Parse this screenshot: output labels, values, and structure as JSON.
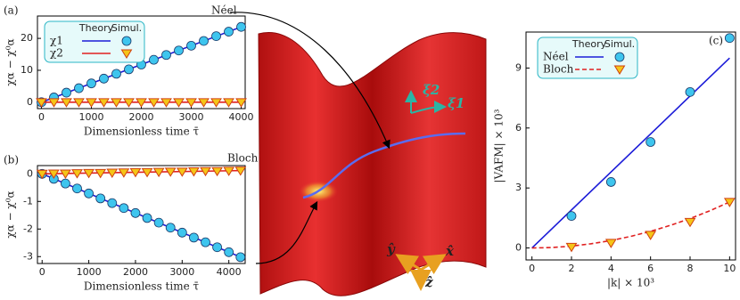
{
  "chart_data": [
    {
      "type": "line",
      "panel": "(a)",
      "annotation": "Néel",
      "x_label": "Dimensionless time τ̄",
      "y_label": "χα − χ⁰α",
      "legend_header": [
        "Theory",
        "Simul."
      ],
      "xlim": [
        -80,
        4080
      ],
      "ylim": [
        -2,
        27
      ],
      "xticks": [
        0,
        1000,
        2000,
        3000,
        4000
      ],
      "yticks": [
        0,
        10,
        20
      ],
      "series": [
        {
          "name": "χ1",
          "color": "#1c1cd8",
          "x": [
            0,
            4000
          ],
          "values": [
            0,
            23.6
          ],
          "marker": "circle",
          "marker_color": "#3ec5ee",
          "sim_x": [
            0,
            250,
            500,
            750,
            1000,
            1250,
            1500,
            1750,
            2000,
            2250,
            2500,
            2750,
            3000,
            3250,
            3500,
            3750,
            4000
          ],
          "sim_values": [
            0,
            1.5,
            3,
            4.4,
            5.9,
            7.4,
            8.9,
            10.3,
            11.8,
            13.3,
            14.8,
            16.2,
            17.7,
            19.2,
            20.7,
            22.1,
            23.6
          ]
        },
        {
          "name": "χ2",
          "color": "#e02020",
          "x": [
            0,
            4000
          ],
          "values": [
            0,
            0
          ],
          "marker": "triangle",
          "marker_color": "#f5c518",
          "sim_x": [
            0,
            250,
            500,
            750,
            1000,
            1250,
            1500,
            1750,
            2000,
            2250,
            2500,
            2750,
            3000,
            3250,
            3500,
            3750,
            4000
          ],
          "sim_values": [
            0,
            0,
            0,
            0,
            0,
            0,
            0,
            0,
            0,
            0,
            0,
            0,
            0,
            0,
            0,
            0,
            0
          ]
        }
      ]
    },
    {
      "type": "line",
      "panel": "(b)",
      "annotation": "Bloch",
      "x_label": "Dimensionless time τ̄",
      "y_label": "χα − χ⁰α",
      "xlim": [
        -100,
        4350
      ],
      "ylim": [
        -3.25,
        0.3
      ],
      "xticks": [
        0,
        1000,
        2000,
        3000,
        4000
      ],
      "yticks": [
        -3,
        -2,
        -1,
        0
      ],
      "series": [
        {
          "name": "χ1",
          "color": "#1c1cd8",
          "x": [
            0,
            4300
          ],
          "values": [
            0,
            -3.05
          ],
          "marker": "circle",
          "marker_color": "#3ec5ee",
          "sim_x": [
            0,
            250,
            500,
            750,
            1000,
            1250,
            1500,
            1750,
            2000,
            2250,
            2500,
            2750,
            3000,
            3250,
            3500,
            3750,
            4000,
            4250
          ],
          "sim_values": [
            0,
            -0.18,
            -0.35,
            -0.53,
            -0.71,
            -0.89,
            -1.06,
            -1.24,
            -1.42,
            -1.6,
            -1.77,
            -1.95,
            -2.13,
            -2.31,
            -2.48,
            -2.66,
            -2.84,
            -3.02
          ]
        },
        {
          "name": "χ2",
          "color": "#e02020",
          "x": [
            0,
            4300
          ],
          "values": [
            0,
            0.12
          ],
          "marker": "triangle",
          "marker_color": "#f5c518",
          "sim_x": [
            0,
            250,
            500,
            750,
            1000,
            1250,
            1500,
            1750,
            2000,
            2250,
            2500,
            2750,
            3000,
            3250,
            3500,
            3750,
            4000,
            4250
          ],
          "sim_values": [
            0,
            0.01,
            0.01,
            0.02,
            0.03,
            0.03,
            0.04,
            0.05,
            0.06,
            0.06,
            0.07,
            0.08,
            0.08,
            0.09,
            0.1,
            0.1,
            0.11,
            0.12
          ]
        }
      ]
    },
    {
      "type": "line",
      "panel": "(c)",
      "x_label": "|k| × 10³",
      "y_label": "|VAFM| × 10³",
      "legend_header": [
        "Theory",
        "Simul."
      ],
      "xlim": [
        -0.3,
        10.3
      ],
      "ylim": [
        -0.6,
        10.8
      ],
      "xticks": [
        0,
        2,
        4,
        6,
        8,
        10
      ],
      "yticks": [
        0,
        3,
        6,
        9
      ],
      "series": [
        {
          "name": "Néel",
          "color": "#1c1cd8",
          "x": [
            0,
            10
          ],
          "values": [
            0,
            9.5
          ],
          "marker": "circle",
          "marker_color": "#3ec5ee",
          "sim_x": [
            2,
            4,
            6,
            8,
            10
          ],
          "sim_values": [
            1.6,
            3.3,
            5.3,
            7.8,
            10.5
          ]
        },
        {
          "name": "Bloch",
          "color": "#e02020",
          "dash": true,
          "x": [
            0,
            1,
            2,
            3,
            4,
            5,
            6,
            7,
            8,
            9,
            10
          ],
          "values": [
            0,
            0.02,
            0.09,
            0.21,
            0.37,
            0.58,
            0.83,
            1.13,
            1.47,
            1.86,
            2.3
          ],
          "marker": "triangle",
          "marker_color": "#f5c518",
          "sim_x": [
            2,
            4,
            6,
            8,
            10
          ],
          "sim_values": [
            0.05,
            0.25,
            0.65,
            1.3,
            2.3
          ]
        }
      ]
    }
  ],
  "illustration": {
    "xi1": "ξ1",
    "xi2": "ξ2",
    "x_axis": "x̂",
    "y_axis": "ŷ",
    "z_axis": "ẑ"
  }
}
